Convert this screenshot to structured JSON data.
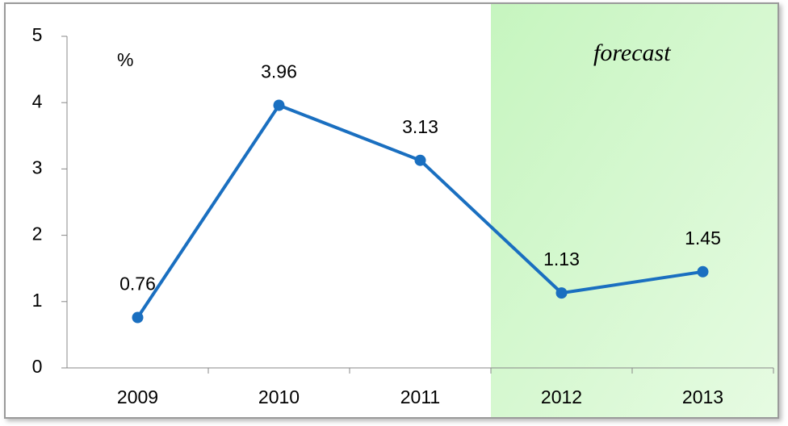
{
  "chart_data": {
    "type": "line",
    "y_unit_label": "%",
    "annotation": "forecast",
    "categories": [
      "2009",
      "2010",
      "2011",
      "2012",
      "2013"
    ],
    "series": [
      {
        "name": "value",
        "color": "#1a6fc0",
        "values": [
          0.76,
          3.96,
          3.13,
          1.13,
          1.45
        ]
      }
    ],
    "ylim": [
      0,
      5
    ],
    "yticks": [
      0,
      1,
      2,
      3,
      4,
      5
    ],
    "shade_color": "#c6f5bf",
    "data_labels": true
  }
}
